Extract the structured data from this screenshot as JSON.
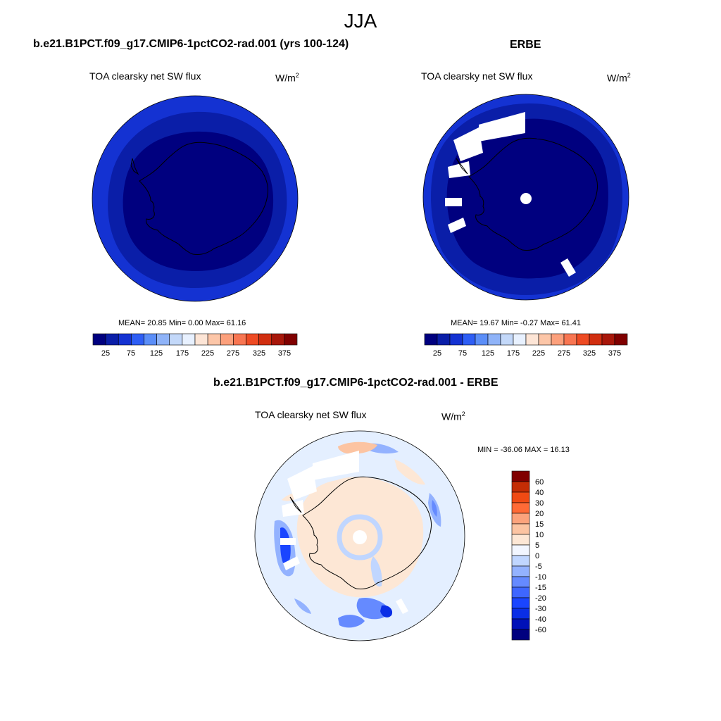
{
  "figure": {
    "title": "JJA"
  },
  "palettes": {
    "absolute": [
      "#00007f",
      "#0a1ea8",
      "#1432d2",
      "#2e5ef5",
      "#5b8ef8",
      "#8fb3f8",
      "#c3d8f9",
      "#e8f1ff",
      "#fde5d6",
      "#fcc6a8",
      "#fca07c",
      "#f87652",
      "#ee4b24",
      "#d12e10",
      "#a8170a",
      "#800000"
    ],
    "difference": [
      "#00007f",
      "#0011b8",
      "#0a2ee6",
      "#1a45ff",
      "#3e66ff",
      "#658aff",
      "#93b2ff",
      "#c0d6ff",
      "#f2f6ff",
      "#fde7d5",
      "#fcc4a2",
      "#fca37c",
      "#ff6a36",
      "#f04a14",
      "#c42d05",
      "#800000"
    ]
  },
  "chart_data": [
    {
      "type": "heatmap",
      "projection": "south polar stereographic",
      "title": "b.e21.B1PCT.f09_g17.CMIP6-1pctCO2-rad.001 (yrs 100-124)",
      "variable_label": "TOA clearsky net SW flux",
      "units": {
        "base": "W/m",
        "sup": "2"
      },
      "stats_text": "MEAN=  20.85  Min=   0.00  Max=  61.16",
      "stats": {
        "mean": 20.85,
        "min": 0.0,
        "max": 61.16
      },
      "colorbar_tick_labels": [
        "25",
        "75",
        "125",
        "175",
        "225",
        "275",
        "325",
        "375"
      ],
      "zones": [
        {
          "from_lat": -90,
          "to_lat": -69,
          "bin_index": 0,
          "approx_value": 10
        },
        {
          "from_lat": -69,
          "to_lat": -60,
          "bin_index": 1,
          "approx_value": 30
        },
        {
          "from_lat": -60,
          "to_lat": -50,
          "bin_index": 2,
          "approx_value": 55
        }
      ]
    },
    {
      "type": "heatmap",
      "projection": "south polar stereographic",
      "title": "ERBE",
      "variable_label": "TOA clearsky net SW flux",
      "units": {
        "base": "W/m",
        "sup": "2"
      },
      "stats_text": "MEAN=  19.67  Min=  -0.27  Max=  61.41",
      "stats": {
        "mean": 19.67,
        "min": -0.27,
        "max": 61.41
      },
      "colorbar_tick_labels": [
        "25",
        "75",
        "125",
        "175",
        "225",
        "275",
        "325",
        "375"
      ],
      "zones": [
        {
          "from_lat": -90,
          "to_lat": -62,
          "bin_index": 0,
          "approx_value": 10
        },
        {
          "from_lat": -62,
          "to_lat": -55,
          "bin_index": 1,
          "approx_value": 30
        },
        {
          "from_lat": -55,
          "to_lat": -50,
          "bin_index": 2,
          "approx_value": 55
        }
      ],
      "missing_data_present": true
    },
    {
      "type": "heatmap",
      "projection": "south polar stereographic",
      "title": "b.e21.B1PCT.f09_g17.CMIP6-1pctCO2-rad.001 - ERBE",
      "variable_label": "TOA clearsky net SW flux",
      "units": {
        "base": "W/m",
        "sup": "2"
      },
      "stats_text": "MIN = -36.06 MAX =  16.13",
      "stats": {
        "min": -36.06,
        "max": 16.13
      },
      "colorbar_tick_labels": [
        "60",
        "40",
        "30",
        "20",
        "15",
        "10",
        "5",
        "0",
        "-5",
        "-10",
        "-15",
        "-20",
        "-30",
        "-40",
        "-60"
      ],
      "zones": [
        {
          "from_lat": -90,
          "to_lat": -65,
          "bin_index": 9,
          "approx_value": 2
        },
        {
          "from_lat": -65,
          "to_lat": -50,
          "bin_index": 7,
          "approx_value": -3
        }
      ],
      "missing_data_present": true
    }
  ]
}
